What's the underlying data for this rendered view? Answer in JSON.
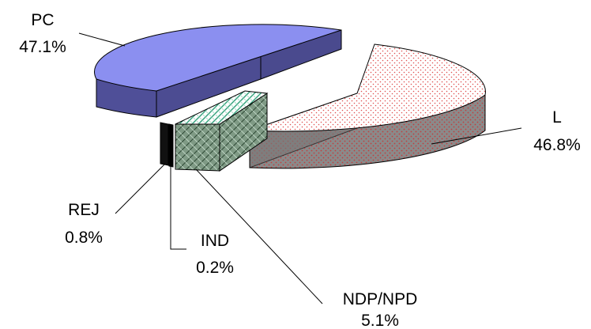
{
  "chart_data": {
    "type": "pie",
    "title": "",
    "slices": [
      {
        "key": "pc",
        "label": "PC",
        "value": 47.1,
        "value_label": "47.1%",
        "color": "#8b8ff0",
        "pattern": "solid"
      },
      {
        "key": "l",
        "label": "L",
        "value": 46.8,
        "value_label": "46.8%",
        "color": "#ffffff",
        "pattern": "red-dots"
      },
      {
        "key": "ndp",
        "label": "NDP/NPD",
        "value": 5.1,
        "value_label": "5.1%",
        "color": "#7f9a85",
        "pattern": "brick"
      },
      {
        "key": "ind",
        "label": "IND",
        "value": 0.2,
        "value_label": "0.2%",
        "color": "#000000",
        "pattern": "solid"
      },
      {
        "key": "rej",
        "label": "REJ",
        "value": 0.8,
        "value_label": "0.8%",
        "color": "#111111",
        "pattern": "solid"
      }
    ],
    "legend": "none",
    "style": "3d-exploded"
  }
}
